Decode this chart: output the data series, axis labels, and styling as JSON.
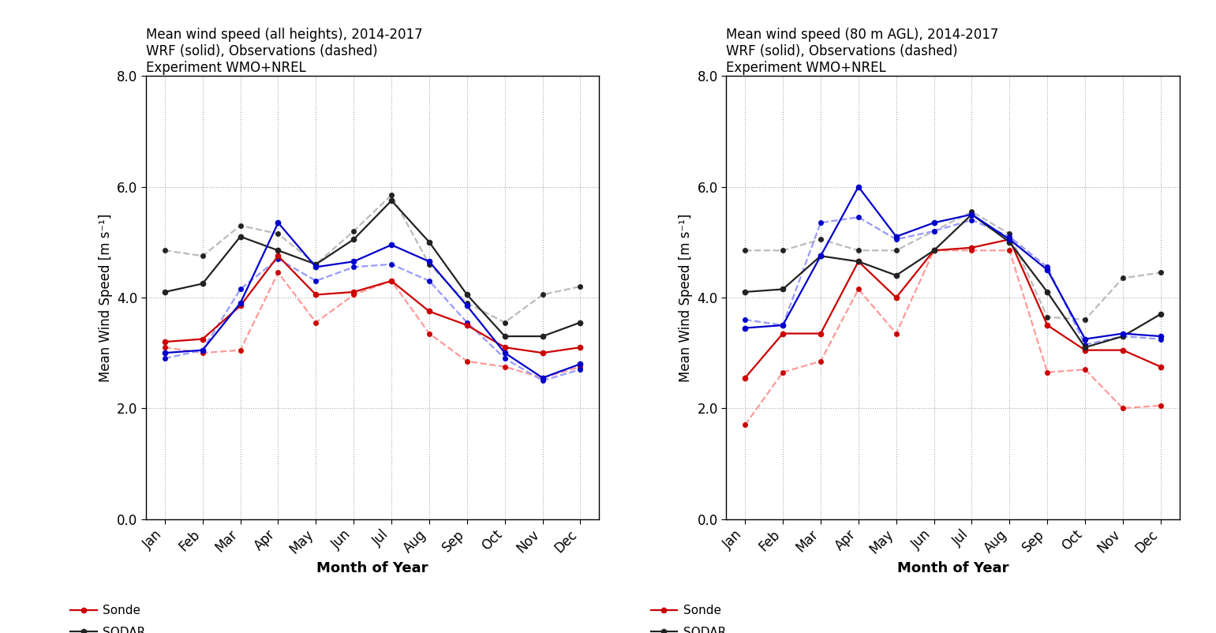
{
  "months": [
    "Jan",
    "Feb",
    "Mar",
    "Apr",
    "May",
    "Jun",
    "Jul",
    "Aug",
    "Sep",
    "Oct",
    "Nov",
    "Dec"
  ],
  "left_title": "Mean wind speed (all heights), 2014-2017\nWRF (solid), Observations (dashed)\nExperiment WMO+NREL",
  "right_title": "Mean wind speed (80 m AGL), 2014-2017\nWRF (solid), Observations (dashed)\nExperiment WMO+NREL",
  "ylabel": "Mean Wind Speed [m s⁻¹]",
  "xlabel": "Month of Year",
  "ylim": [
    0.0,
    8.0
  ],
  "yticks": [
    0.0,
    2.0,
    4.0,
    6.0,
    8.0
  ],
  "left": {
    "sonde_solid": [
      3.2,
      3.25,
      3.85,
      4.75,
      4.05,
      4.1,
      4.3,
      3.75,
      3.5,
      3.1,
      3.0,
      3.1
    ],
    "sonde_dashed": [
      3.1,
      3.0,
      3.05,
      4.45,
      3.55,
      4.05,
      4.3,
      3.35,
      2.85,
      2.75,
      2.55,
      2.75
    ],
    "sodar_solid": [
      4.1,
      4.25,
      5.1,
      4.85,
      4.6,
      5.05,
      5.75,
      5.0,
      4.05,
      3.3,
      3.3,
      3.55
    ],
    "sodar_dashed": [
      4.85,
      4.75,
      5.3,
      5.15,
      4.6,
      5.2,
      5.85,
      4.6,
      3.9,
      3.55,
      4.05,
      4.2
    ],
    "tower_solid": [
      3.0,
      3.05,
      3.9,
      5.35,
      4.55,
      4.65,
      4.95,
      4.65,
      3.85,
      3.0,
      2.55,
      2.8
    ],
    "tower_dashed": [
      2.9,
      3.05,
      4.15,
      4.7,
      4.3,
      4.55,
      4.6,
      4.3,
      3.55,
      2.9,
      2.5,
      2.7
    ]
  },
  "right": {
    "sonde_solid": [
      2.55,
      3.35,
      3.35,
      4.65,
      4.0,
      4.85,
      4.9,
      5.05,
      3.5,
      3.05,
      3.05,
      2.75
    ],
    "sonde_dashed": [
      1.7,
      2.65,
      2.85,
      4.15,
      3.35,
      4.85,
      4.85,
      4.85,
      2.65,
      2.7,
      2.0,
      2.05
    ],
    "sodar_solid": [
      4.1,
      4.15,
      4.75,
      4.65,
      4.4,
      4.85,
      5.5,
      5.0,
      4.1,
      3.1,
      3.3,
      3.7
    ],
    "sodar_dashed": [
      4.85,
      4.85,
      5.05,
      4.85,
      4.85,
      5.2,
      5.55,
      5.15,
      3.65,
      3.6,
      4.35,
      4.45
    ],
    "tower_solid": [
      3.45,
      3.5,
      4.75,
      6.0,
      5.1,
      5.35,
      5.5,
      5.05,
      4.5,
      3.25,
      3.35,
      3.3
    ],
    "tower_dashed": [
      3.6,
      3.5,
      5.35,
      5.45,
      5.05,
      5.2,
      5.4,
      5.1,
      4.55,
      3.15,
      3.3,
      3.25
    ]
  },
  "sonde_color": "#cc0000",
  "sodar_color": "#222222",
  "tower_color": "#0000cc",
  "sonde_dashed_color": "#ff9999",
  "sodar_dashed_color": "#bbbbbb",
  "tower_dashed_color": "#9999ff"
}
